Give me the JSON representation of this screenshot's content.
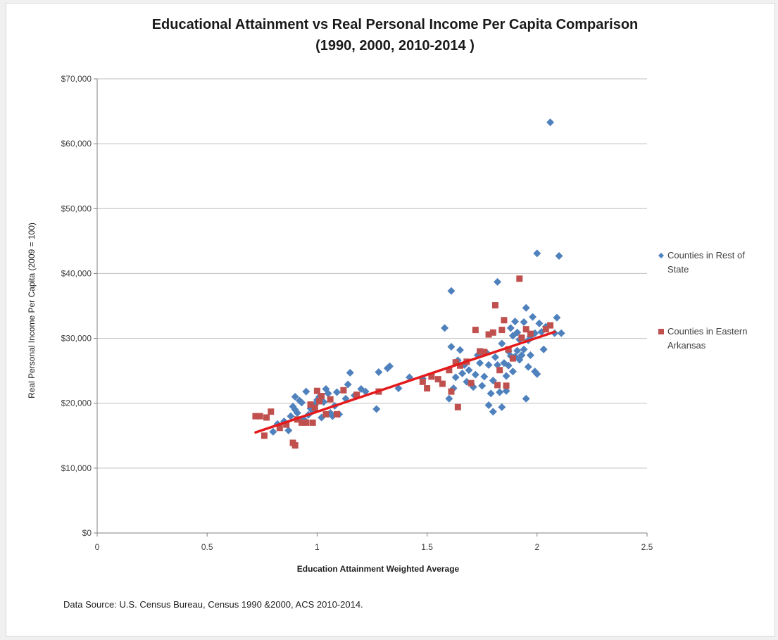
{
  "source_note": "Data Source: U.S. Census  Bureau, Census 1990 &2000, ACS 2010-2014.",
  "colors": {
    "rest": "#4f81bd",
    "eastern": "#c0504d",
    "trend": "#e41a1c",
    "grid": "#bfbfbf"
  },
  "chart_data": {
    "type": "scatter",
    "title": "Educational Attainment vs Real Personal Income Per Capita Comparison",
    "subtitle": "(1990, 2000, 2010-2014 )",
    "xlabel": "Education Attainment Weighted Average",
    "ylabel": "Real Personal Income Per Capita (2009 = 100)",
    "xlim": [
      0,
      2.5
    ],
    "ylim": [
      0,
      70000
    ],
    "x_ticks": [
      "0",
      "0.5",
      "1",
      "1.5",
      "2",
      "2.5"
    ],
    "x_tick_values": [
      0,
      0.5,
      1,
      1.5,
      2,
      2.5
    ],
    "y_ticks": [
      "$0",
      "$10,000",
      "$20,000",
      "$30,000",
      "$40,000",
      "$50,000",
      "$60,000",
      "$70,000"
    ],
    "y_tick_values": [
      0,
      10000,
      20000,
      30000,
      40000,
      50000,
      60000,
      70000
    ],
    "grid": "horizontal",
    "legend_position": "right",
    "trendline": {
      "x": [
        0.72,
        2.08
      ],
      "y": [
        15500,
        31000
      ]
    },
    "series": [
      {
        "name": "Counties in Rest of State",
        "marker": "diamond",
        "color": "#4f81bd",
        "points": [
          [
            0.8,
            15600
          ],
          [
            0.82,
            16800
          ],
          [
            0.85,
            17200
          ],
          [
            0.87,
            15800
          ],
          [
            0.88,
            18000
          ],
          [
            0.89,
            19500
          ],
          [
            0.9,
            21000
          ],
          [
            0.9,
            19000
          ],
          [
            0.91,
            18500
          ],
          [
            0.92,
            20400
          ],
          [
            0.93,
            20100
          ],
          [
            0.94,
            17500
          ],
          [
            0.95,
            21800
          ],
          [
            0.96,
            18200
          ],
          [
            0.97,
            19200
          ],
          [
            0.98,
            18800
          ],
          [
            0.99,
            19800
          ],
          [
            1.0,
            20500
          ],
          [
            1.01,
            21000
          ],
          [
            1.02,
            17800
          ],
          [
            1.03,
            20200
          ],
          [
            1.04,
            22200
          ],
          [
            1.05,
            21500
          ],
          [
            1.06,
            18500
          ],
          [
            1.07,
            18000
          ],
          [
            1.08,
            19600
          ],
          [
            1.09,
            21700
          ],
          [
            1.1,
            18300
          ],
          [
            1.13,
            20700
          ],
          [
            1.14,
            22900
          ],
          [
            1.15,
            24700
          ],
          [
            1.17,
            21200
          ],
          [
            1.2,
            22200
          ],
          [
            1.22,
            21800
          ],
          [
            1.27,
            19100
          ],
          [
            1.28,
            24800
          ],
          [
            1.32,
            25400
          ],
          [
            1.33,
            25700
          ],
          [
            1.37,
            22300
          ],
          [
            1.42,
            24000
          ],
          [
            1.48,
            23800
          ],
          [
            1.58,
            31600
          ],
          [
            1.6,
            20700
          ],
          [
            1.61,
            28700
          ],
          [
            1.61,
            37300
          ],
          [
            1.62,
            22300
          ],
          [
            1.63,
            24000
          ],
          [
            1.64,
            26600
          ],
          [
            1.65,
            28200
          ],
          [
            1.66,
            24600
          ],
          [
            1.67,
            25900
          ],
          [
            1.68,
            23300
          ],
          [
            1.69,
            25100
          ],
          [
            1.7,
            23000
          ],
          [
            1.71,
            22500
          ],
          [
            1.72,
            24400
          ],
          [
            1.73,
            27400
          ],
          [
            1.74,
            26200
          ],
          [
            1.75,
            22700
          ],
          [
            1.76,
            24100
          ],
          [
            1.77,
            27800
          ],
          [
            1.78,
            25900
          ],
          [
            1.78,
            19700
          ],
          [
            1.79,
            21500
          ],
          [
            1.8,
            18700
          ],
          [
            1.8,
            23500
          ],
          [
            1.81,
            27100
          ],
          [
            1.82,
            38700
          ],
          [
            1.82,
            25900
          ],
          [
            1.83,
            21700
          ],
          [
            1.84,
            19400
          ],
          [
            1.84,
            29200
          ],
          [
            1.85,
            26200
          ],
          [
            1.86,
            24200
          ],
          [
            1.86,
            21900
          ],
          [
            1.87,
            28000
          ],
          [
            1.87,
            25800
          ],
          [
            1.88,
            27300
          ],
          [
            1.88,
            31600
          ],
          [
            1.89,
            24900
          ],
          [
            1.89,
            30400
          ],
          [
            1.9,
            32600
          ],
          [
            1.9,
            27200
          ],
          [
            1.91,
            28100
          ],
          [
            1.91,
            30900
          ],
          [
            1.92,
            26700
          ],
          [
            1.92,
            29800
          ],
          [
            1.93,
            27400
          ],
          [
            1.94,
            32500
          ],
          [
            1.94,
            28300
          ],
          [
            1.95,
            20700
          ],
          [
            1.95,
            34700
          ],
          [
            1.96,
            29700
          ],
          [
            1.96,
            25600
          ],
          [
            1.97,
            30300
          ],
          [
            1.97,
            27400
          ],
          [
            1.98,
            33300
          ],
          [
            1.99,
            24900
          ],
          [
            1.99,
            30800
          ],
          [
            2.0,
            24500
          ],
          [
            2.0,
            43100
          ],
          [
            2.01,
            32300
          ],
          [
            2.02,
            31000
          ],
          [
            2.03,
            28300
          ],
          [
            2.04,
            31800
          ],
          [
            2.06,
            63300
          ],
          [
            2.08,
            30800
          ],
          [
            2.09,
            33200
          ],
          [
            2.1,
            42700
          ],
          [
            2.11,
            30800
          ]
        ]
      },
      {
        "name": "Counties in Eastern Arkansas",
        "marker": "square",
        "color": "#c0504d",
        "points": [
          [
            0.72,
            18000
          ],
          [
            0.74,
            18000
          ],
          [
            0.76,
            15000
          ],
          [
            0.77,
            17800
          ],
          [
            0.79,
            18700
          ],
          [
            0.83,
            16200
          ],
          [
            0.86,
            16700
          ],
          [
            0.89,
            13900
          ],
          [
            0.9,
            13500
          ],
          [
            0.91,
            17500
          ],
          [
            0.93,
            17000
          ],
          [
            0.95,
            17000
          ],
          [
            0.97,
            19800
          ],
          [
            0.98,
            17000
          ],
          [
            0.99,
            19300
          ],
          [
            1.0,
            21900
          ],
          [
            1.01,
            20300
          ],
          [
            1.02,
            21100
          ],
          [
            1.04,
            18300
          ],
          [
            1.06,
            20600
          ],
          [
            1.09,
            18300
          ],
          [
            1.12,
            22000
          ],
          [
            1.18,
            21300
          ],
          [
            1.28,
            21800
          ],
          [
            1.48,
            23300
          ],
          [
            1.5,
            22300
          ],
          [
            1.52,
            24100
          ],
          [
            1.55,
            23700
          ],
          [
            1.57,
            23000
          ],
          [
            1.6,
            25100
          ],
          [
            1.61,
            21800
          ],
          [
            1.63,
            26300
          ],
          [
            1.64,
            19400
          ],
          [
            1.65,
            25800
          ],
          [
            1.68,
            26400
          ],
          [
            1.7,
            23100
          ],
          [
            1.72,
            31300
          ],
          [
            1.74,
            28000
          ],
          [
            1.76,
            27900
          ],
          [
            1.78,
            30600
          ],
          [
            1.8,
            30900
          ],
          [
            1.81,
            35100
          ],
          [
            1.82,
            22800
          ],
          [
            1.83,
            25100
          ],
          [
            1.84,
            31300
          ],
          [
            1.85,
            32800
          ],
          [
            1.86,
            22700
          ],
          [
            1.87,
            28300
          ],
          [
            1.89,
            26900
          ],
          [
            1.92,
            39200
          ],
          [
            1.93,
            30100
          ],
          [
            1.95,
            31400
          ],
          [
            1.97,
            30700
          ],
          [
            2.04,
            31400
          ],
          [
            2.06,
            32000
          ]
        ]
      }
    ]
  }
}
